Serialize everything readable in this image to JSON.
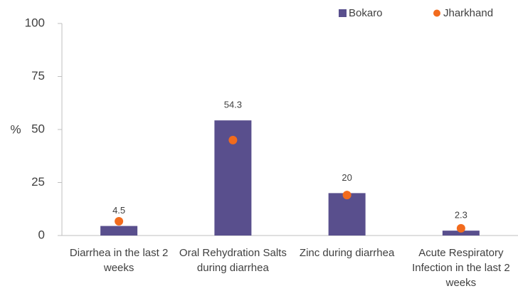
{
  "chart_data": {
    "type": "bar",
    "categories": [
      "Diarrhea in the last 2 weeks",
      "Oral Rehydration Salts during diarrhea",
      "Zinc during diarrhea",
      "Acute Respiratory Infection in the last 2 weeks"
    ],
    "series": [
      {
        "name": "Bokaro",
        "color": "#594f8d",
        "values": [
          4.5,
          54.3,
          20,
          2.3
        ],
        "kind": "bar"
      },
      {
        "name": "Jharkhand",
        "color": "#f26b1d",
        "values": [
          6.7,
          45,
          19.1,
          3.4
        ],
        "kind": "dot"
      }
    ],
    "y_label": "%",
    "ylim": [
      0,
      100
    ],
    "yticks": [
      0,
      25,
      50,
      75,
      100
    ],
    "legend": "top-right"
  }
}
